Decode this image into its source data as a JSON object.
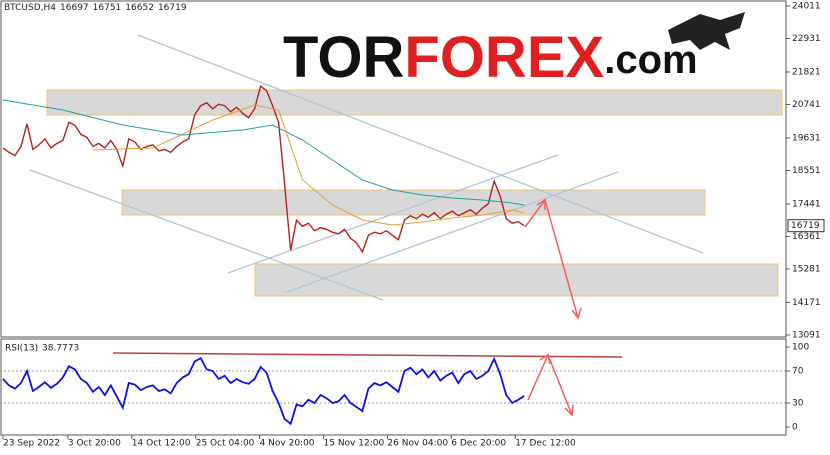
{
  "watermark": [
    "TOR",
    "FOREX",
    ".com"
  ],
  "chart_data": [
    {
      "type": "line",
      "symbol": "BTCUSD,H4",
      "ohlc": [
        16697,
        16751,
        16652,
        16719
      ],
      "x": [
        0,
        1,
        2,
        3,
        4,
        5,
        6,
        7,
        8,
        9,
        10,
        11,
        12,
        13,
        14,
        15,
        16,
        17,
        18,
        19,
        20,
        21,
        22,
        23,
        24,
        25,
        26,
        27,
        28,
        29,
        30,
        31,
        32,
        33,
        34,
        35,
        36,
        37,
        38,
        39,
        40,
        41,
        42,
        43,
        44,
        45,
        46,
        47,
        48,
        49,
        50,
        51,
        52,
        53,
        54,
        55,
        56,
        57,
        58,
        59,
        60,
        61,
        62,
        63,
        64,
        65,
        66,
        67,
        68,
        69,
        70,
        71,
        72,
        73,
        74,
        75,
        76,
        77,
        78,
        79,
        80,
        81,
        82,
        83,
        84,
        85,
        86,
        87
      ],
      "xlim": [
        -0.5,
        130.7
      ],
      "ylim": [
        12991,
        24210
      ],
      "yticks": [
        24011,
        22931,
        21821,
        20741,
        19631,
        18551,
        17441,
        16361,
        15281,
        14171,
        13091
      ],
      "series": [
        {
          "color": "#b22222",
          "values": [
            19300,
            19150,
            19050,
            19350,
            20100,
            19250,
            19400,
            19600,
            19300,
            19450,
            19550,
            20150,
            20050,
            19750,
            19650,
            19350,
            19450,
            19300,
            19550,
            19250,
            18700,
            19600,
            19500,
            19250,
            19350,
            19400,
            19200,
            19250,
            19150,
            19350,
            19500,
            19600,
            20400,
            20700,
            20800,
            20600,
            20750,
            20700,
            20500,
            20650,
            20450,
            20300,
            20600,
            21350,
            21200,
            20700,
            20150,
            18100,
            15900,
            16900,
            16700,
            16800,
            16550,
            16650,
            16600,
            16500,
            16450,
            16600,
            16300,
            16150,
            15850,
            16400,
            16500,
            16450,
            16550,
            16400,
            16250,
            16900,
            17050,
            16950,
            17100,
            17000,
            17150,
            16950,
            17100,
            17200,
            17050,
            17150,
            17250,
            17100,
            17300,
            17450,
            18200,
            17700,
            16950,
            16800,
            16850,
            16719
          ]
        },
        {
          "color": "#20a0a0",
          "x": [
            0,
            10,
            20,
            30,
            40,
            45,
            50,
            55,
            60,
            65,
            70,
            75,
            80,
            85,
            87
          ],
          "values": [
            20891,
            20559,
            20061,
            19729,
            19895,
            20061,
            19563,
            18900,
            18236,
            17904,
            17738,
            17638,
            17572,
            17472,
            17406
          ]
        },
        {
          "color": "#e0a030",
          "x": [
            15,
            25,
            35,
            42,
            46,
            50,
            55,
            60,
            65,
            70,
            75,
            80,
            85,
            87
          ],
          "values": [
            19231,
            19297,
            20227,
            20725,
            20559,
            18236,
            17406,
            16908,
            16742,
            16842,
            16975,
            17074,
            17240,
            17141
          ]
        }
      ]
    },
    {
      "type": "line",
      "title": "RSI(13)",
      "x": [
        0,
        1,
        2,
        3,
        4,
        5,
        6,
        7,
        8,
        9,
        10,
        11,
        12,
        13,
        14,
        15,
        16,
        17,
        18,
        19,
        20,
        21,
        22,
        23,
        24,
        25,
        26,
        27,
        28,
        29,
        30,
        31,
        32,
        33,
        34,
        35,
        36,
        37,
        38,
        39,
        40,
        41,
        42,
        43,
        44,
        45,
        46,
        47,
        48,
        49,
        50,
        51,
        52,
        53,
        54,
        55,
        56,
        57,
        58,
        59,
        60,
        61,
        62,
        63,
        64,
        65,
        66,
        67,
        68,
        69,
        70,
        71,
        72,
        73,
        74,
        75,
        76,
        77,
        78,
        79,
        80,
        81,
        82,
        83,
        84,
        85,
        86,
        87
      ],
      "xlim": [
        -0.5,
        130.7
      ],
      "ylim": [
        -10,
        108.75
      ],
      "xticks": [
        {
          "value": 0,
          "label": "23 Sep 2022"
        },
        {
          "value": 10.83,
          "label": "3 Oct 20:00"
        },
        {
          "value": 21.5,
          "label": "14 Oct 12:00"
        },
        {
          "value": 32.17,
          "label": "25 Oct 04:00"
        },
        {
          "value": 42.83,
          "label": "4 Nov 20:00"
        },
        {
          "value": 53.5,
          "label": "15 Nov 12:00"
        },
        {
          "value": 64.17,
          "label": "26 Nov 04:00"
        },
        {
          "value": 74.83,
          "label": "6 Dec 20:00"
        },
        {
          "value": 85.5,
          "label": "17 Dec 12:00"
        }
      ],
      "yticks": [
        100,
        70,
        30,
        0
      ],
      "series": [
        {
          "color": "#1010e0",
          "values": [
            60,
            52,
            48,
            55,
            70,
            45,
            50,
            56,
            49,
            54,
            62,
            76,
            72,
            60,
            55,
            44,
            50,
            40,
            52,
            38,
            24,
            55,
            53,
            46,
            50,
            52,
            45,
            47,
            42,
            55,
            62,
            66,
            82,
            86,
            72,
            70,
            60,
            64,
            55,
            60,
            56,
            54,
            60,
            75,
            68,
            45,
            30,
            10,
            4,
            28,
            26,
            34,
            30,
            40,
            36,
            30,
            32,
            40,
            30,
            25,
            20,
            48,
            55,
            52,
            56,
            50,
            44,
            70,
            74,
            66,
            72,
            62,
            70,
            58,
            64,
            68,
            55,
            66,
            70,
            60,
            64,
            70,
            85,
            66,
            40,
            30,
            34,
            38.7773
          ]
        }
      ]
    }
  ]
}
